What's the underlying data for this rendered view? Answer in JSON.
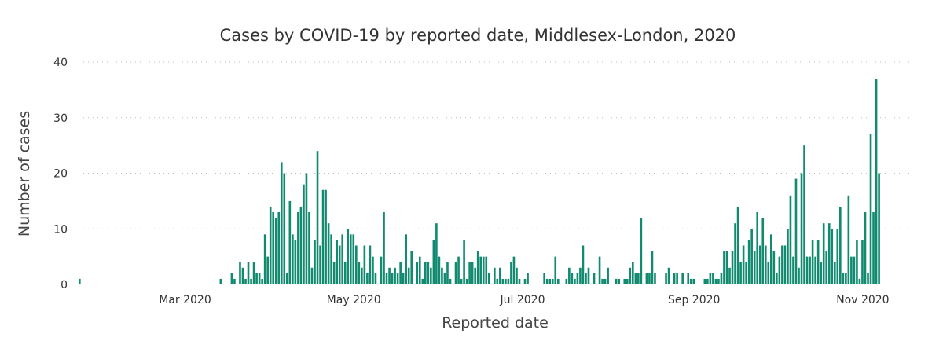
{
  "chart_data": {
    "type": "bar",
    "title": "Cases by COVID-19 by reported date, Middlesex-London, 2020",
    "xlabel": "Reported date",
    "ylabel": "Number of cases",
    "ylim": [
      0,
      40
    ],
    "y_ticks": [
      "0",
      "10",
      "20",
      "30",
      "40"
    ],
    "x_ticks": [
      {
        "label": "Mar 2020",
        "date": "2020-03-01"
      },
      {
        "label": "May 2020",
        "date": "2020-05-01"
      },
      {
        "label": "Jul 2020",
        "date": "2020-07-01"
      },
      {
        "label": "Sep 2020",
        "date": "2020-09-01"
      },
      {
        "label": "Nov 2020",
        "date": "2020-11-01"
      }
    ],
    "x_start": "2020-01-23",
    "values": [
      1,
      0,
      0,
      0,
      0,
      0,
      0,
      0,
      0,
      0,
      0,
      0,
      0,
      0,
      0,
      0,
      0,
      0,
      0,
      0,
      0,
      0,
      0,
      0,
      0,
      0,
      0,
      0,
      0,
      0,
      0,
      0,
      0,
      0,
      0,
      0,
      0,
      0,
      0,
      0,
      0,
      0,
      0,
      0,
      0,
      0,
      0,
      0,
      0,
      0,
      0,
      1,
      0,
      0,
      0,
      2,
      1,
      0,
      4,
      3,
      1,
      4,
      1,
      4,
      2,
      2,
      1,
      9,
      5,
      14,
      13,
      12,
      13,
      22,
      20,
      2,
      15,
      9,
      8,
      13,
      14,
      18,
      20,
      13,
      3,
      8,
      24,
      7,
      17,
      17,
      11,
      9,
      4,
      8,
      7,
      9,
      4,
      10,
      9,
      9,
      7,
      4,
      3,
      7,
      2,
      7,
      5,
      2,
      0,
      5,
      13,
      2,
      3,
      2,
      3,
      2,
      4,
      2,
      9,
      3,
      6,
      0,
      4,
      5,
      1,
      4,
      4,
      3,
      8,
      11,
      5,
      3,
      2,
      4,
      1,
      0,
      4,
      5,
      1,
      8,
      1,
      4,
      4,
      3,
      6,
      5,
      5,
      5,
      2,
      0,
      3,
      1,
      3,
      1,
      1,
      1,
      4,
      5,
      3,
      1,
      0,
      1,
      2,
      0,
      0,
      0,
      0,
      0,
      2,
      1,
      1,
      1,
      5,
      1,
      0,
      0,
      1,
      3,
      2,
      1,
      2,
      3,
      7,
      2,
      3,
      0,
      2,
      0,
      5,
      1,
      1,
      3,
      0,
      0,
      1,
      1,
      0,
      1,
      1,
      3,
      4,
      2,
      2,
      12,
      0,
      2,
      2,
      6,
      2,
      0,
      0,
      0,
      2,
      3,
      0,
      2,
      2,
      0,
      2,
      0,
      2,
      1,
      1,
      0,
      0,
      0,
      1,
      1,
      2,
      2,
      1,
      1,
      2,
      6,
      6,
      3,
      6,
      11,
      14,
      4,
      7,
      4,
      8,
      10,
      6,
      13,
      7,
      12,
      7,
      4,
      9,
      6,
      2,
      5,
      7,
      7,
      10,
      16,
      5,
      19,
      3,
      20,
      25,
      5,
      5,
      8,
      5,
      8,
      4,
      11,
      6,
      11,
      10,
      4,
      10,
      14,
      2,
      2,
      16,
      5,
      5,
      8,
      1,
      8,
      13,
      2,
      27,
      13,
      37,
      20
    ]
  }
}
